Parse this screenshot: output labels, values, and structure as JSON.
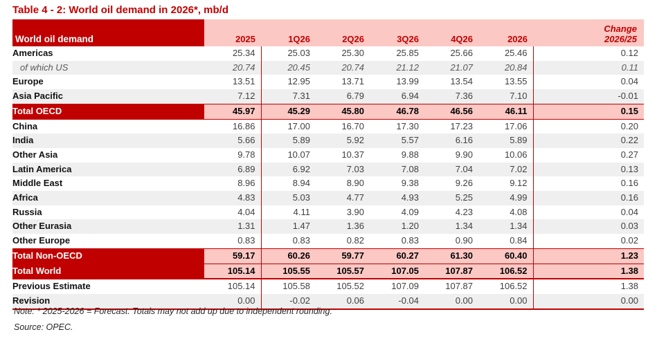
{
  "title": "Table 4 - 2: World oil demand in 2026*, mb/d",
  "colors": {
    "dark_red": "#c00000",
    "pink": "#fbc8c4",
    "stripe_gray": "#efefef"
  },
  "table": {
    "label_header": "World oil demand",
    "period_headers": [
      "2025",
      "1Q26",
      "2Q26",
      "3Q26",
      "4Q26",
      "2026"
    ],
    "change_header": {
      "line1": "Change",
      "line2": "2026/25"
    },
    "rows": [
      {
        "label": "Americas",
        "type": "normal",
        "shaded": false,
        "values": [
          "25.34",
          "25.03",
          "25.30",
          "25.85",
          "25.66",
          "25.46",
          "0.12"
        ]
      },
      {
        "label": "of which US",
        "type": "sub",
        "shaded": true,
        "values": [
          "20.74",
          "20.45",
          "20.74",
          "21.12",
          "21.07",
          "20.84",
          "0.11"
        ]
      },
      {
        "label": "Europe",
        "type": "normal",
        "shaded": false,
        "values": [
          "13.51",
          "12.95",
          "13.71",
          "13.99",
          "13.54",
          "13.55",
          "0.04"
        ]
      },
      {
        "label": "Asia Pacific",
        "type": "normal",
        "shaded": true,
        "values": [
          "7.12",
          "7.31",
          "6.79",
          "6.94",
          "7.36",
          "7.10",
          "-0.01"
        ]
      },
      {
        "label": "Total OECD",
        "type": "total",
        "shaded": false,
        "values": [
          "45.97",
          "45.29",
          "45.80",
          "46.78",
          "46.56",
          "46.11",
          "0.15"
        ]
      },
      {
        "label": "China",
        "type": "normal",
        "shaded": false,
        "values": [
          "16.86",
          "17.00",
          "16.70",
          "17.30",
          "17.23",
          "17.06",
          "0.20"
        ]
      },
      {
        "label": "India",
        "type": "normal",
        "shaded": true,
        "values": [
          "5.66",
          "5.89",
          "5.92",
          "5.57",
          "6.16",
          "5.89",
          "0.22"
        ]
      },
      {
        "label": "Other Asia",
        "type": "normal",
        "shaded": false,
        "values": [
          "9.78",
          "10.07",
          "10.37",
          "9.88",
          "9.90",
          "10.06",
          "0.27"
        ]
      },
      {
        "label": "Latin America",
        "type": "normal",
        "shaded": true,
        "values": [
          "6.89",
          "6.92",
          "7.03",
          "7.08",
          "7.04",
          "7.02",
          "0.13"
        ]
      },
      {
        "label": "Middle East",
        "type": "normal",
        "shaded": false,
        "values": [
          "8.96",
          "8.94",
          "8.90",
          "9.38",
          "9.26",
          "9.12",
          "0.16"
        ]
      },
      {
        "label": "Africa",
        "type": "normal",
        "shaded": true,
        "values": [
          "4.83",
          "5.03",
          "4.77",
          "4.93",
          "5.25",
          "4.99",
          "0.16"
        ]
      },
      {
        "label": "Russia",
        "type": "normal",
        "shaded": false,
        "values": [
          "4.04",
          "4.11",
          "3.90",
          "4.09",
          "4.23",
          "4.08",
          "0.04"
        ]
      },
      {
        "label": "Other Eurasia",
        "type": "normal",
        "shaded": true,
        "values": [
          "1.31",
          "1.47",
          "1.36",
          "1.20",
          "1.34",
          "1.34",
          "0.03"
        ]
      },
      {
        "label": "Other Europe",
        "type": "normal",
        "shaded": false,
        "values": [
          "0.83",
          "0.83",
          "0.82",
          "0.83",
          "0.90",
          "0.84",
          "0.02"
        ]
      },
      {
        "label": "Total Non-OECD",
        "type": "total",
        "shaded": false,
        "values": [
          "59.17",
          "60.26",
          "59.77",
          "60.27",
          "61.30",
          "60.40",
          "1.23"
        ]
      },
      {
        "label": "Total World",
        "type": "total",
        "shaded": false,
        "values": [
          "105.14",
          "105.55",
          "105.57",
          "107.05",
          "107.87",
          "106.52",
          "1.38"
        ]
      },
      {
        "label": "Previous Estimate",
        "type": "normal",
        "shaded": false,
        "values": [
          "105.14",
          "105.58",
          "105.52",
          "107.09",
          "107.87",
          "106.52",
          "1.38"
        ]
      },
      {
        "label": "Revision",
        "type": "normal",
        "shaded": true,
        "values": [
          "0.00",
          "-0.02",
          "0.06",
          "-0.04",
          "0.00",
          "0.00",
          "0.00"
        ]
      }
    ]
  },
  "footnotes": {
    "note": "Note: * 2025-2026 = Forecast. Totals may not add up due to independent rounding.",
    "source": "Source: OPEC."
  }
}
